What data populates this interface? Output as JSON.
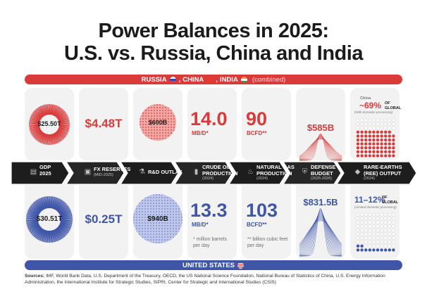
{
  "title_line1": "Power Balances in 2025:",
  "title_line2": "U.S. vs. Russia, China and India",
  "top_band": {
    "countries": [
      "RUSSIA",
      "CHINA",
      "INDIA"
    ],
    "suffix": "(combined)"
  },
  "bottom_band": {
    "label": "UNITED STATES"
  },
  "colors": {
    "red": "#d93a3a",
    "blue": "#3e55a8",
    "dark": "#1b1b1b",
    "card": "#f2f2f2"
  },
  "categories": [
    {
      "label": "GDP",
      "label2": "2025",
      "sub": ""
    },
    {
      "label": "FX RESERVES",
      "label2": "",
      "sub": "(MID-2025)"
    },
    {
      "label": "R&D OUTLAY",
      "label2": "",
      "sub": ""
    },
    {
      "label": "CRUDE OIL",
      "label2": "PRODUCTION",
      "sub": "(2024)"
    },
    {
      "label": "NATURAL GAS",
      "label2": "PRODUCTION",
      "sub": "(2024)"
    },
    {
      "label": "DEFENSE",
      "label2": "BUDGET",
      "sub": "(2025-2026)"
    },
    {
      "label": "RARE-EARTHS",
      "label2": "(REE) OUTPUT",
      "sub": "(2024)"
    }
  ],
  "chart_data": {
    "type": "table",
    "columns": [
      "GDP 2025",
      "FX RESERVES",
      "R&D OUTLAY",
      "CRUDE OIL PRODUCTION",
      "NATURAL GAS PRODUCTION",
      "DEFENSE BUDGET",
      "RARE-EARTHS (REE) OUTPUT"
    ],
    "series": [
      {
        "name": "RUSSIA, CHINA, INDIA (combined)",
        "values": [
          "$25.50T",
          "$4.48T",
          "$600B",
          "14.0",
          "90",
          "$585B",
          "~69%"
        ]
      },
      {
        "name": "UNITED STATES",
        "values": [
          "$30.51T",
          "$0.25T",
          "$940B",
          "13.3",
          "103",
          "$831.5B",
          "11–12%"
        ]
      }
    ],
    "units": {
      "crude": "MB/D*",
      "gas": "BCFD**"
    },
    "rare_earths": {
      "china_share_pct": 69,
      "us_share_pct": 12
    }
  },
  "top": {
    "gdp": "$25.50T",
    "fx": "$4.48T",
    "rd": "$600B",
    "oil": "14.0",
    "oil_unit": "MB/D*",
    "gas": "90",
    "gas_unit": "BCFD**",
    "defense": "$585B",
    "ree_label": "China",
    "ree_value": "~69%",
    "ree_of": "OF",
    "ree_global": "GLOBAL",
    "ree_note": "(With domestic processing)"
  },
  "bottom": {
    "gdp": "$30.51T",
    "fx": "$0.25T",
    "rd": "$940B",
    "oil": "13.3",
    "oil_unit": "MB/D*",
    "oil_note": "* million barrels per day",
    "gas": "103",
    "gas_unit": "BCFD**",
    "gas_note": "** billion cubic feet per day",
    "defense": "$831.5B",
    "ree_value": "11–12%",
    "ree_of": "OF",
    "ree_global": "GLOBAL",
    "ree_note": "(Limited domestic processing)"
  },
  "sources": {
    "label": "Sources:",
    "text": "IMF, World Bank Data, U.S. Department of the Treasury, OECD, the US National Science Foundation, National Bureau of Statistics of China, U.S. Energy Information Administration, the International Institute for Strategic Studies, SIPRI, Center for Strategic and International Studies (CSIS)"
  }
}
